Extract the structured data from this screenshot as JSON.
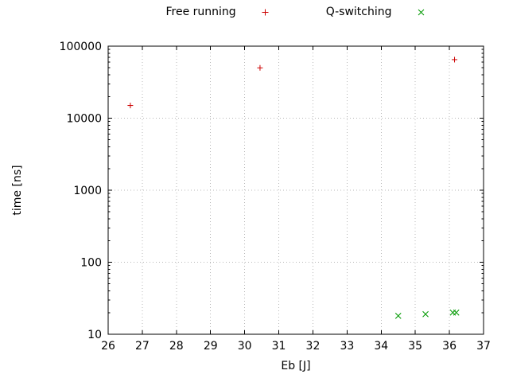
{
  "chart_data": {
    "type": "scatter",
    "title": "",
    "xlabel": "Eb [J]",
    "ylabel": "time [ns]",
    "xlim": [
      26,
      37
    ],
    "xticks": [
      26,
      27,
      28,
      29,
      30,
      31,
      32,
      33,
      34,
      35,
      36,
      37
    ],
    "yscale": "log",
    "ylim": [
      10,
      100000
    ],
    "yticks": [
      10,
      100,
      1000,
      10000,
      100000
    ],
    "grid": true,
    "legend_position": "top-center-outside",
    "series": [
      {
        "name": "Free running",
        "marker": "plus",
        "color": "#cc0000",
        "points": [
          [
            26.65,
            15000
          ],
          [
            30.45,
            50000
          ],
          [
            36.15,
            65000
          ]
        ]
      },
      {
        "name": "Q-switching",
        "marker": "cross",
        "color": "#009900",
        "points": [
          [
            34.5,
            18
          ],
          [
            35.3,
            19
          ],
          [
            36.1,
            20
          ],
          [
            36.2,
            20
          ]
        ]
      }
    ]
  }
}
